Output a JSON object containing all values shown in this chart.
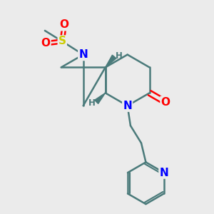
{
  "background_color": "#ebebeb",
  "bond_color": "#4a7a7a",
  "bond_width": 1.8,
  "atom_colors": {
    "N": "#0000ff",
    "O": "#ff0000",
    "S": "#cccc00",
    "H": "#4a7a7a"
  },
  "bg": "#ebebeb",
  "ring_r": 1.0,
  "py_r": 0.82
}
